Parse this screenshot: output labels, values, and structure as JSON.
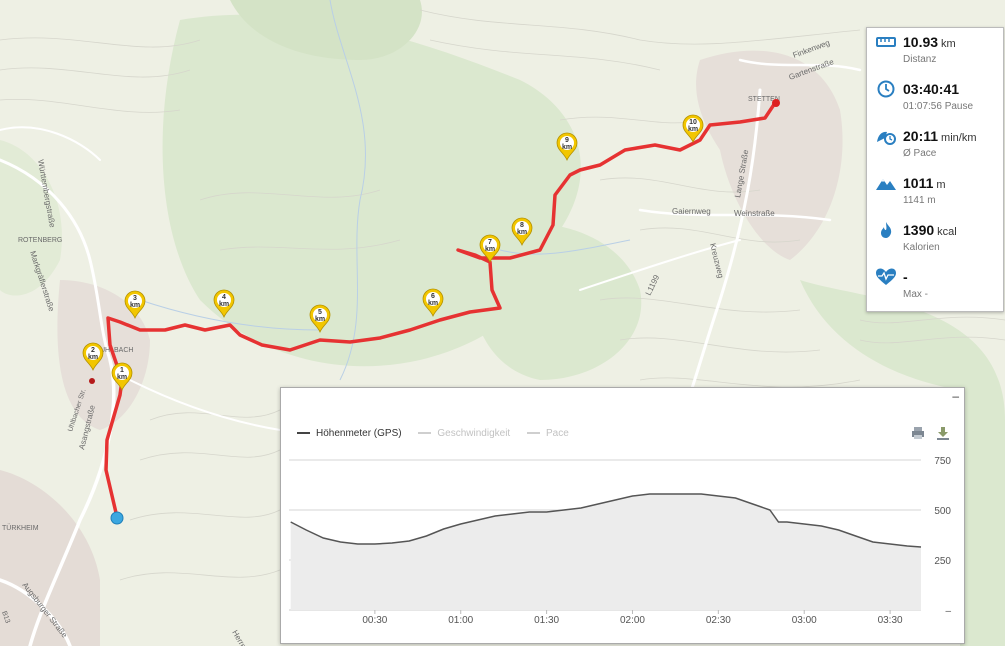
{
  "map": {
    "labels": {
      "wurttembergstrasse": "Württembergstraße",
      "rotenberg": "ROTENBERG",
      "markgrafenstrasse": "Markgräflerstraße",
      "uhlbach": "UHLBACH",
      "uhlbacher_str": "Uhlbacher Str.",
      "asangstrasse": "Asangstraße",
      "turkheim": "TÜRKHEIM",
      "augsburger_strasse": "Augsburger Straße",
      "b_number": "B13",
      "stetten": "STETTEN",
      "finkenweg": "Finkenweg",
      "gartenstrasse": "Gartenstraße",
      "lange_strasse": "Lange Straße",
      "gaiernweg": "Gaiernweg",
      "weinstrasse": "Weinstraße",
      "kreuzweg": "Kreuzweg",
      "l1199": "L1199",
      "herrenweg": "Herrenweg"
    },
    "km_markers": [
      {
        "num": "1",
        "unit": "km"
      },
      {
        "num": "2",
        "unit": "km"
      },
      {
        "num": "3",
        "unit": "km"
      },
      {
        "num": "4",
        "unit": "km"
      },
      {
        "num": "5",
        "unit": "km"
      },
      {
        "num": "6",
        "unit": "km"
      },
      {
        "num": "7",
        "unit": "km"
      },
      {
        "num": "8",
        "unit": "km"
      },
      {
        "num": "9",
        "unit": "km"
      },
      {
        "num": "10",
        "unit": "km"
      }
    ],
    "route_color": "#e63232",
    "start_color": "#3aa7e0",
    "marker_color": "#f2c600"
  },
  "stats": {
    "distance": {
      "value": "10.93",
      "unit": "km",
      "label": "Distanz",
      "icon": "ruler-icon"
    },
    "time": {
      "value": "03:40:41",
      "sub": "01:07:56 Pause",
      "icon": "clock-icon"
    },
    "pace": {
      "value": "20:11",
      "unit": "min/km",
      "sub": "Ø Pace",
      "icon": "pace-icon"
    },
    "elevation": {
      "value": "1011",
      "unit": "m",
      "sub": "1141 m",
      "icon": "mountain-icon"
    },
    "calories": {
      "value": "1390",
      "unit": "kcal",
      "label": "Kalorien",
      "icon": "flame-icon"
    },
    "heart": {
      "value": "-",
      "sub": "Max -",
      "icon": "heart-rate-icon"
    },
    "accent": "#2a7fc1"
  },
  "chart_panel": {
    "minimize": "–",
    "legend": {
      "elevation": "Höhenmeter (GPS)",
      "speed": "Geschwindigkeit",
      "pace": "Pace"
    }
  },
  "chart_data": {
    "type": "area",
    "series": [
      {
        "name": "Höhenmeter (GPS)",
        "x": [
          0.01,
          0.1,
          0.2,
          0.3,
          0.4,
          0.5,
          0.6,
          0.7,
          0.8,
          0.9,
          1.0,
          1.1,
          1.2,
          1.3,
          1.4,
          1.5,
          1.6,
          1.7,
          1.8,
          1.9,
          2.0,
          2.1,
          2.2,
          2.3,
          2.4,
          2.5,
          2.6,
          2.7,
          2.8,
          2.85,
          2.9,
          3.0,
          3.1,
          3.2,
          3.3,
          3.4,
          3.5,
          3.6,
          3.68
        ],
        "values": [
          440,
          400,
          360,
          340,
          330,
          330,
          335,
          345,
          370,
          405,
          430,
          450,
          470,
          480,
          490,
          490,
          500,
          510,
          530,
          550,
          570,
          580,
          580,
          580,
          580,
          570,
          560,
          530,
          500,
          440,
          440,
          430,
          420,
          400,
          370,
          340,
          330,
          320,
          315
        ]
      }
    ],
    "x_ticks": [
      "00:30",
      "01:00",
      "01:30",
      "02:00",
      "02:30",
      "03:00",
      "03:30"
    ],
    "x_tick_values": [
      0.5,
      1.0,
      1.5,
      2.0,
      2.5,
      3.0,
      3.5
    ],
    "y_ticks": [
      "–",
      "250",
      "500",
      "750"
    ],
    "y_tick_values": [
      0,
      250,
      500,
      750
    ],
    "xlim": [
      0,
      3.68
    ],
    "ylim": [
      0,
      750
    ],
    "grid": true,
    "line_color": "#555555",
    "fill_color": "#ececec",
    "legend_position": "top-left"
  }
}
